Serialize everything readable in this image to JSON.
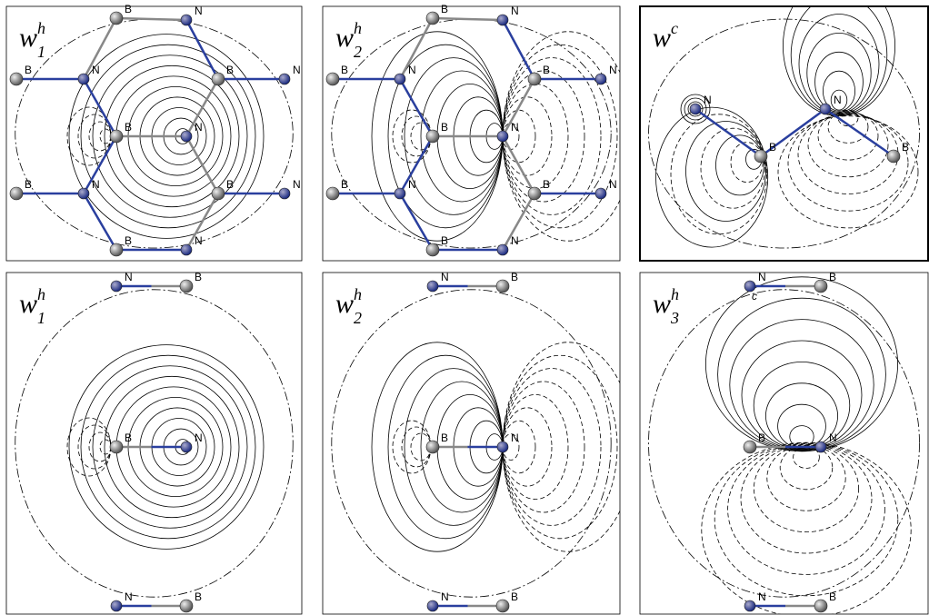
{
  "panels": [
    {
      "label": {
        "base": "w",
        "sub": "1",
        "sup": "h"
      },
      "atoms": [
        "B",
        "N",
        "N",
        "B",
        "B",
        "N",
        "B",
        "N",
        "B",
        "N",
        "B",
        "N",
        "B",
        "N"
      ]
    },
    {
      "label": {
        "base": "w",
        "sub": "2",
        "sup": "h"
      },
      "atoms": [
        "B",
        "N",
        "N",
        "B",
        "B",
        "N",
        "B",
        "N",
        "B",
        "N",
        "B",
        "N",
        "B",
        "N"
      ]
    },
    {
      "label": {
        "base": "w",
        "sup": "c"
      },
      "atoms": [
        "N",
        "N",
        "B",
        "B"
      ]
    },
    {
      "label": {
        "base": "w",
        "sub": "1",
        "sup": "h"
      },
      "atoms": [
        "N",
        "B",
        "B",
        "N",
        "N",
        "B"
      ]
    },
    {
      "label": {
        "base": "w",
        "sub": "2",
        "sup": "h"
      },
      "atoms": [
        "N",
        "B",
        "B",
        "N",
        "N",
        "B"
      ]
    },
    {
      "label": {
        "base": "w",
        "sub": "3",
        "sup": "h"
      },
      "atoms": [
        "N",
        "B",
        "B",
        "N",
        "N",
        "B"
      ],
      "note": "c"
    }
  ]
}
